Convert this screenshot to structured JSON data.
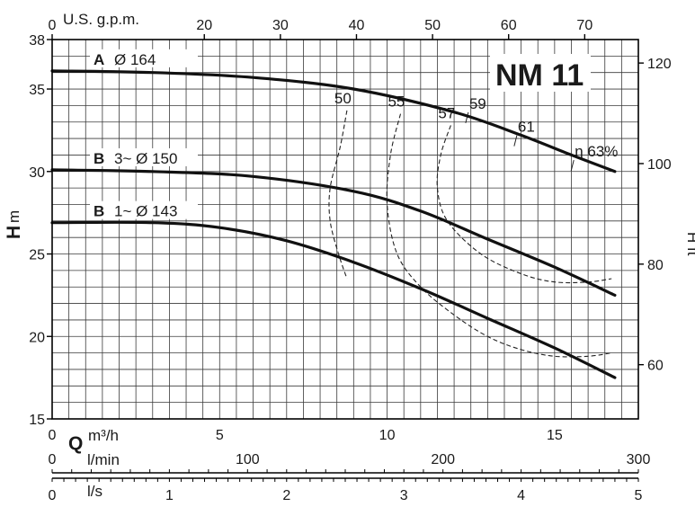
{
  "chart_data": {
    "type": "line",
    "title": "NM 11",
    "ylabel_left": {
      "main": "H",
      "unit": "m"
    },
    "ylabel_right": "H ft",
    "xlabel_top": "U.S. g.p.m.",
    "xlabel_q": {
      "main": "Q",
      "unit": "m³/h"
    },
    "lmin_label": "l/min",
    "ls_label": "l/s",
    "x_m3h": {
      "lim": [
        0,
        17.5
      ],
      "ticks": [
        "0",
        "5",
        "10",
        "15"
      ],
      "tick_values": [
        0,
        5,
        10,
        15
      ]
    },
    "y_m": {
      "lim": [
        15,
        38
      ],
      "ticks": [
        "15",
        "20",
        "25",
        "30",
        "35",
        "38"
      ],
      "tick_values": [
        15,
        20,
        25,
        30,
        35,
        38
      ]
    },
    "y_ft": {
      "ticks": [
        "60",
        "80",
        "100",
        "120"
      ],
      "tick_values": [
        60,
        80,
        100,
        120
      ]
    },
    "x_gpm": {
      "ticks": [
        "0",
        "20",
        "30",
        "40",
        "50",
        "60",
        "70"
      ],
      "tick_values": [
        0,
        20,
        30,
        40,
        50,
        60,
        70
      ]
    },
    "x_lmin": {
      "lim": [
        0,
        300
      ],
      "ticks": [
        "0",
        "100",
        "200",
        "300"
      ],
      "tick_values": [
        0,
        100,
        200,
        300
      ]
    },
    "x_ls": {
      "lim": [
        0,
        5
      ],
      "ticks": [
        "0",
        "1",
        "2",
        "3",
        "4",
        "5"
      ],
      "tick_values": [
        0,
        1,
        2,
        3,
        4,
        5
      ]
    },
    "series": [
      {
        "key": "A",
        "letter": "A",
        "name": "Ø 164",
        "x": [
          0,
          3,
          6,
          9,
          12,
          14,
          15.5,
          16.8
        ],
        "y": [
          36.1,
          36.0,
          35.7,
          35.0,
          33.6,
          32.2,
          31.0,
          30.0
        ]
      },
      {
        "key": "B3",
        "letter": "B",
        "name": "3~  Ø 150",
        "x": [
          0,
          3,
          6,
          9,
          11,
          13,
          15,
          16.8
        ],
        "y": [
          30.1,
          30.0,
          29.7,
          28.8,
          27.6,
          25.9,
          24.2,
          22.5
        ]
      },
      {
        "key": "B1",
        "letter": "B",
        "name": "1~  Ø 143",
        "x": [
          0,
          3,
          5,
          7,
          9,
          11,
          13,
          15,
          16.8
        ],
        "y": [
          26.9,
          26.9,
          26.6,
          25.8,
          24.5,
          22.9,
          21.1,
          19.3,
          17.5
        ]
      }
    ],
    "efficiency": [
      {
        "label": "50",
        "x": [
          8.8,
          8.6,
          8.3,
          8.3,
          8.55,
          8.8
        ],
        "y": [
          33.7,
          31.5,
          29.0,
          27.0,
          25.0,
          23.5
        ]
      },
      {
        "label": "55",
        "x": [
          10.4,
          10.1,
          10.0,
          10.3,
          11.0,
          12.0,
          13.0,
          14.0,
          15.0,
          16.0,
          16.7
        ],
        "y": [
          33.5,
          31.0,
          28.0,
          25.0,
          23.0,
          21.3,
          20.0,
          19.2,
          18.8,
          18.8,
          19.0
        ]
      },
      {
        "label": "57",
        "x": [
          11.9,
          11.6,
          11.5,
          11.8,
          12.8,
          14.0,
          15.0,
          16.0,
          16.7
        ],
        "y": [
          32.8,
          31.0,
          29.0,
          27.0,
          25.0,
          23.8,
          23.3,
          23.3,
          23.5
        ]
      }
    ],
    "eff_labels": [
      {
        "label": "59",
        "x": 12.45,
        "y": 33.7
      },
      {
        "label": "61",
        "x": 13.9,
        "y": 32.3
      },
      {
        "label": "η 63%",
        "x": 15.6,
        "y": 30.8
      }
    ]
  }
}
